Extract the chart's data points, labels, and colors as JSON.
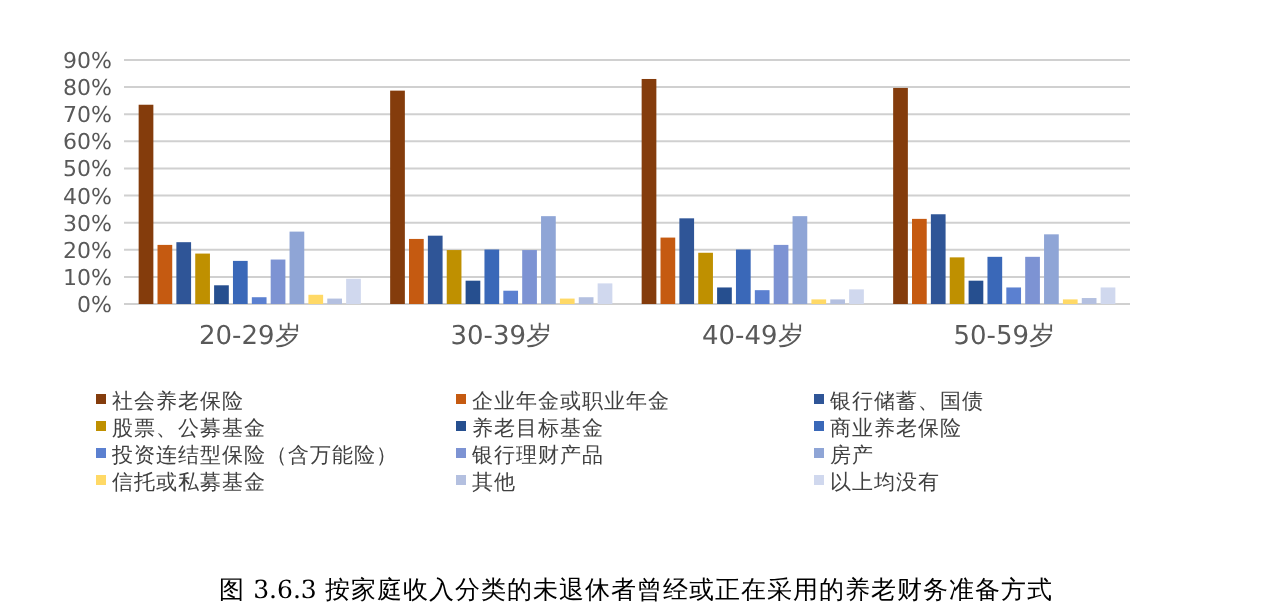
{
  "chart_data": {
    "type": "bar",
    "title": "图 3.6.3  按家庭收入分类的未退休者曾经或正在采用的养老财务准备方式",
    "categories": [
      "20-29岁",
      "30-39岁",
      "40-49岁",
      "50-59岁"
    ],
    "series": [
      {
        "name": "社会养老保险",
        "color": "#843c0c",
        "values": [
          73.5,
          78.7,
          83,
          79.7
        ]
      },
      {
        "name": "企业年金或职业年金",
        "color": "#c55a11",
        "values": [
          21.8,
          24,
          24.5,
          31.4
        ]
      },
      {
        "name": "银行储蓄、国债",
        "color": "#2f5597",
        "values": [
          22.8,
          25.2,
          31.6,
          33.1
        ]
      },
      {
        "name": "股票、公募基金",
        "color": "#bf9000",
        "values": [
          18.6,
          19.9,
          18.9,
          17.2
        ]
      },
      {
        "name": "养老目标基金",
        "color": "#264f8f",
        "values": [
          6.9,
          8.6,
          6.1,
          8.6
        ]
      },
      {
        "name": "商业养老保险",
        "color": "#3a68b8",
        "values": [
          15.9,
          20.1,
          20.1,
          17.4
        ]
      },
      {
        "name": "投资连结型保险（含万能险）",
        "color": "#5b80d0",
        "values": [
          2.5,
          4.9,
          5.1,
          6.1
        ]
      },
      {
        "name": "银行理财产品",
        "color": "#7d93d3",
        "values": [
          16.4,
          19.9,
          21.8,
          17.4
        ]
      },
      {
        "name": "房产",
        "color": "#8fa5d6",
        "values": [
          26.7,
          32.4,
          32.4,
          25.7
        ]
      },
      {
        "name": "信托或私募基金",
        "color": "#ffd966",
        "values": [
          3.4,
          2,
          1.7,
          1.7
        ]
      },
      {
        "name": "其他",
        "color": "#b4c0e0",
        "values": [
          2,
          2.5,
          1.7,
          2.2
        ]
      },
      {
        "name": "以上均没有",
        "color": "#d0d8ee",
        "values": [
          9.3,
          7.6,
          5.4,
          6.1
        ]
      }
    ],
    "ylim": [
      0,
      90
    ],
    "yticks": [
      {
        "value": 0,
        "label": "0%"
      },
      {
        "value": 10,
        "label": "10%"
      },
      {
        "value": 20,
        "label": "20%"
      },
      {
        "value": 30,
        "label": "30%"
      },
      {
        "value": 40,
        "label": "40%"
      },
      {
        "value": 50,
        "label": "50%"
      },
      {
        "value": 60,
        "label": "60%"
      },
      {
        "value": 70,
        "label": "70%"
      },
      {
        "value": 80,
        "label": "80%"
      },
      {
        "value": 90,
        "label": "90%"
      }
    ],
    "grid": "y",
    "legend": "bottom"
  }
}
